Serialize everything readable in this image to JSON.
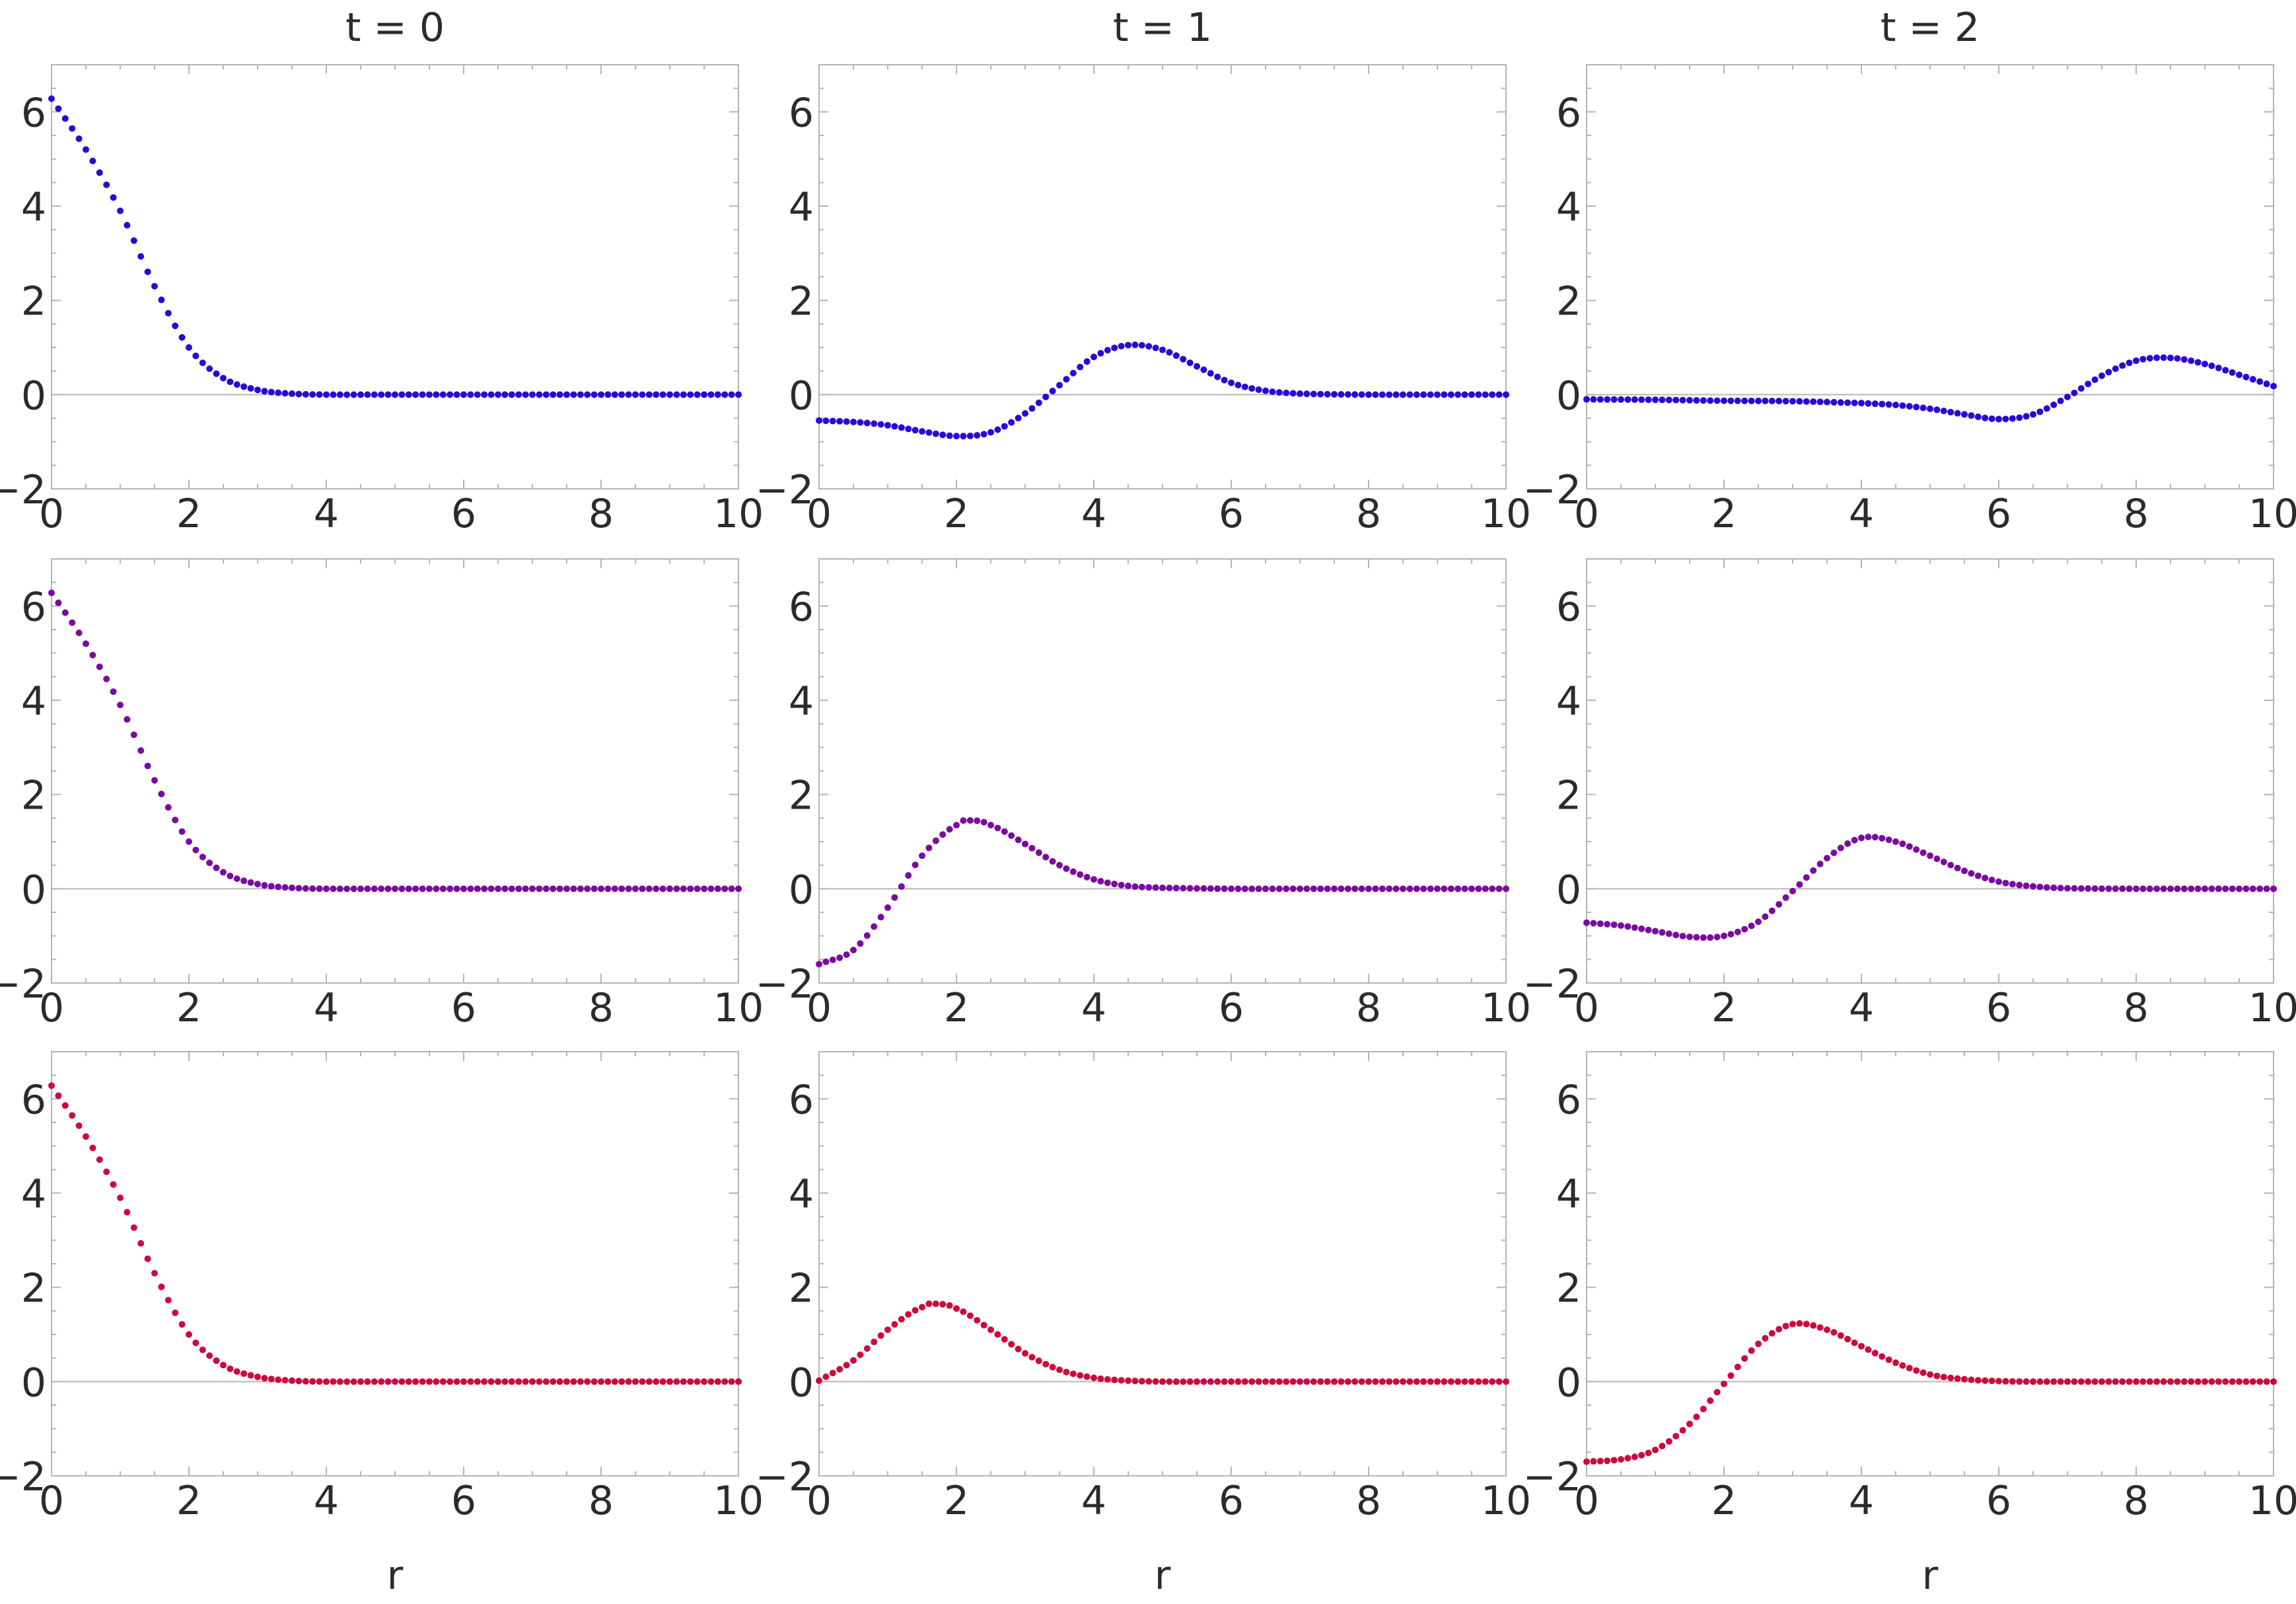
{
  "figure": {
    "column_titles": [
      "t = 0",
      "t = 1",
      "t = 2"
    ],
    "xlabel": "r",
    "row_colors": [
      "#2c05d8",
      "#7b0aa0",
      "#cc0a3c"
    ]
  },
  "chart_data": [
    {
      "type": "scatter",
      "row": 0,
      "col": 0,
      "color": "#2c05d8",
      "xlim": [
        0,
        10
      ],
      "ylim": [
        -2,
        7
      ],
      "xticks": [
        0,
        2,
        4,
        6,
        8,
        10
      ],
      "yticks": [
        -2,
        0,
        2,
        4,
        6
      ],
      "r": [
        0,
        0.5,
        1,
        1.5,
        2,
        2.5,
        3,
        3.5,
        4,
        5,
        6,
        7,
        8,
        9,
        10
      ],
      "y": [
        6.28,
        5.2,
        3.9,
        2.3,
        1.0,
        0.35,
        0.1,
        0.02,
        0,
        0,
        0,
        0,
        0,
        0,
        0
      ]
    },
    {
      "type": "scatter",
      "row": 0,
      "col": 1,
      "color": "#2c05d8",
      "xlim": [
        0,
        10
      ],
      "ylim": [
        -2,
        7
      ],
      "xticks": [
        0,
        2,
        4,
        6,
        8,
        10
      ],
      "yticks": [
        -2,
        0,
        2,
        4,
        6
      ],
      "r": [
        0,
        0.5,
        1,
        1.5,
        2,
        2.5,
        3,
        3.5,
        4,
        4.5,
        5,
        5.5,
        6,
        6.5,
        7,
        8,
        9,
        10
      ],
      "y": [
        -0.55,
        -0.58,
        -0.65,
        -0.78,
        -0.88,
        -0.8,
        -0.4,
        0.2,
        0.8,
        1.05,
        0.95,
        0.6,
        0.25,
        0.08,
        0.02,
        0,
        0,
        0
      ]
    },
    {
      "type": "scatter",
      "row": 0,
      "col": 2,
      "color": "#2c05d8",
      "xlim": [
        0,
        10
      ],
      "ylim": [
        -2,
        7
      ],
      "xticks": [
        0,
        2,
        4,
        6,
        8,
        10
      ],
      "yticks": [
        -2,
        0,
        2,
        4,
        6
      ],
      "r": [
        0,
        1,
        2,
        3,
        4,
        4.5,
        5,
        5.5,
        6,
        6.5,
        7,
        7.5,
        8,
        8.5,
        9,
        9.5,
        10
      ],
      "y": [
        -0.1,
        -0.11,
        -0.13,
        -0.14,
        -0.18,
        -0.22,
        -0.3,
        -0.42,
        -0.52,
        -0.42,
        -0.05,
        0.4,
        0.72,
        0.78,
        0.65,
        0.42,
        0.18
      ]
    },
    {
      "type": "scatter",
      "row": 1,
      "col": 0,
      "color": "#7b0aa0",
      "xlim": [
        0,
        10
      ],
      "ylim": [
        -2,
        7
      ],
      "xticks": [
        0,
        2,
        4,
        6,
        8,
        10
      ],
      "yticks": [
        -2,
        0,
        2,
        4,
        6
      ],
      "r": [
        0,
        0.5,
        1,
        1.5,
        2,
        2.5,
        3,
        3.5,
        4,
        5,
        6,
        7,
        8,
        9,
        10
      ],
      "y": [
        6.28,
        5.2,
        3.9,
        2.3,
        1.0,
        0.35,
        0.1,
        0.02,
        0,
        0,
        0,
        0,
        0,
        0,
        0
      ]
    },
    {
      "type": "scatter",
      "row": 1,
      "col": 1,
      "color": "#7b0aa0",
      "xlim": [
        0,
        10
      ],
      "ylim": [
        -2,
        7
      ],
      "xticks": [
        0,
        2,
        4,
        6,
        8,
        10
      ],
      "yticks": [
        -2,
        0,
        2,
        4,
        6
      ],
      "r": [
        0,
        0.5,
        1,
        1.5,
        2,
        2.2,
        2.5,
        3,
        3.5,
        4,
        4.5,
        5,
        6,
        7,
        8,
        9,
        10
      ],
      "y": [
        -1.6,
        -1.3,
        -0.4,
        0.7,
        1.35,
        1.45,
        1.35,
        0.95,
        0.5,
        0.2,
        0.06,
        0.02,
        0,
        0,
        0,
        0,
        0
      ]
    },
    {
      "type": "scatter",
      "row": 1,
      "col": 2,
      "color": "#7b0aa0",
      "xlim": [
        0,
        10
      ],
      "ylim": [
        -2,
        7
      ],
      "xticks": [
        0,
        2,
        4,
        6,
        8,
        10
      ],
      "yticks": [
        -2,
        0,
        2,
        4,
        6
      ],
      "r": [
        0,
        0.5,
        1,
        1.5,
        2,
        2.5,
        3,
        3.5,
        4,
        4.5,
        5,
        5.5,
        6,
        6.5,
        7,
        8,
        9,
        10
      ],
      "y": [
        -0.72,
        -0.78,
        -0.9,
        -1.02,
        -1.0,
        -0.7,
        -0.05,
        0.65,
        1.08,
        1.0,
        0.7,
        0.38,
        0.15,
        0.05,
        0.01,
        0,
        0,
        0
      ]
    },
    {
      "type": "scatter",
      "row": 2,
      "col": 0,
      "color": "#cc0a3c",
      "xlim": [
        0,
        10
      ],
      "ylim": [
        -2,
        7
      ],
      "xticks": [
        0,
        2,
        4,
        6,
        8,
        10
      ],
      "yticks": [
        -2,
        0,
        2,
        4,
        6
      ],
      "r": [
        0,
        0.5,
        1,
        1.5,
        2,
        2.5,
        3,
        3.5,
        4,
        5,
        6,
        7,
        8,
        9,
        10
      ],
      "y": [
        6.28,
        5.2,
        3.9,
        2.3,
        1.0,
        0.35,
        0.1,
        0.02,
        0,
        0,
        0,
        0,
        0,
        0,
        0
      ]
    },
    {
      "type": "scatter",
      "row": 2,
      "col": 1,
      "color": "#cc0a3c",
      "xlim": [
        0,
        10
      ],
      "ylim": [
        -2,
        7
      ],
      "xticks": [
        0,
        2,
        4,
        6,
        8,
        10
      ],
      "yticks": [
        -2,
        0,
        2,
        4,
        6
      ],
      "r": [
        0,
        0.5,
        1,
        1.5,
        1.7,
        2,
        2.5,
        3,
        3.5,
        4,
        4.5,
        5,
        6,
        7,
        8,
        9,
        10
      ],
      "y": [
        0.02,
        0.45,
        1.1,
        1.58,
        1.65,
        1.55,
        1.1,
        0.6,
        0.25,
        0.08,
        0.02,
        0,
        0,
        0,
        0,
        0,
        0
      ]
    },
    {
      "type": "scatter",
      "row": 2,
      "col": 2,
      "color": "#cc0a3c",
      "xlim": [
        0,
        10
      ],
      "ylim": [
        -2,
        7
      ],
      "xticks": [
        0,
        2,
        4,
        6,
        8,
        10
      ],
      "yticks": [
        -2,
        0,
        2,
        4,
        6
      ],
      "r": [
        0,
        0.5,
        1,
        1.5,
        2,
        2.5,
        3,
        3.5,
        4,
        4.5,
        5,
        5.5,
        6,
        6.5,
        7,
        8,
        9,
        10
      ],
      "y": [
        -1.7,
        -1.65,
        -1.45,
        -0.9,
        -0.05,
        0.8,
        1.22,
        1.1,
        0.75,
        0.4,
        0.15,
        0.05,
        0.01,
        0,
        0,
        0,
        0,
        0
      ]
    }
  ]
}
